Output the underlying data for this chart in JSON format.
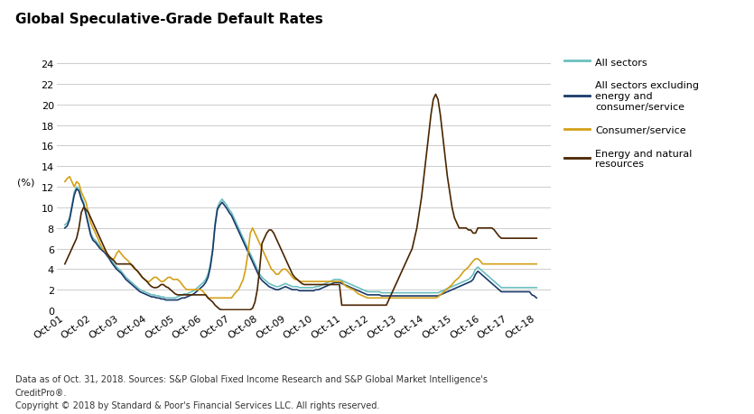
{
  "title": "Global Speculative-Grade Default Rates",
  "ylabel": "(%)",
  "footnote1": "Data as of Oct. 31, 2018. Sources: S&P Global Fixed Income Research and S&P Global Market Intelligence's",
  "footnote2": "CreditPro®.",
  "footnote3": "Copyright © 2018 by Standard & Poor's Financial Services LLC. All rights reserved.",
  "xtick_labels": [
    "Oct-01",
    "Oct-02",
    "Oct-03",
    "Oct-04",
    "Oct-05",
    "Oct-06",
    "Oct-07",
    "Oct-08",
    "Oct-09",
    "Oct-10",
    "Oct-11",
    "Oct-12",
    "Oct-13",
    "Oct-14",
    "Oct-15",
    "Oct-16",
    "Oct-17",
    "Oct-18"
  ],
  "ylim": [
    0,
    25
  ],
  "yticks": [
    0,
    2,
    4,
    6,
    8,
    10,
    12,
    14,
    16,
    18,
    20,
    22,
    24
  ],
  "legend_labels": [
    "All sectors",
    "All sectors excluding\nenergy and\nconsumer/service",
    "Consumer/service",
    "Energy and natural\nresources"
  ],
  "colors": {
    "all_sectors": "#6bbfbf",
    "all_excl": "#1a3a6b",
    "consumer": "#d4a017",
    "energy": "#4a2500"
  },
  "background_color": "#ffffff",
  "grid_color": "#cccccc",
  "n_months": 205,
  "all_sectors": [
    8.3,
    8.5,
    9.0,
    10.2,
    11.5,
    12.0,
    11.8,
    11.0,
    10.5,
    9.5,
    8.5,
    7.5,
    7.0,
    6.8,
    6.5,
    6.2,
    6.0,
    5.8,
    5.5,
    5.2,
    4.8,
    4.5,
    4.2,
    4.0,
    3.8,
    3.5,
    3.2,
    3.0,
    2.8,
    2.6,
    2.4,
    2.2,
    2.0,
    1.9,
    1.8,
    1.7,
    1.6,
    1.5,
    1.5,
    1.4,
    1.4,
    1.3,
    1.3,
    1.2,
    1.2,
    1.2,
    1.2,
    1.2,
    1.3,
    1.4,
    1.5,
    1.6,
    1.6,
    1.7,
    1.8,
    1.9,
    2.1,
    2.3,
    2.5,
    2.7,
    3.0,
    3.5,
    4.5,
    6.0,
    8.5,
    10.0,
    10.5,
    10.8,
    10.5,
    10.2,
    9.8,
    9.5,
    9.0,
    8.5,
    8.0,
    7.5,
    7.0,
    6.5,
    6.0,
    5.5,
    5.0,
    4.5,
    4.0,
    3.5,
    3.2,
    3.0,
    2.8,
    2.6,
    2.5,
    2.4,
    2.3,
    2.3,
    2.4,
    2.5,
    2.6,
    2.5,
    2.4,
    2.3,
    2.3,
    2.3,
    2.2,
    2.2,
    2.2,
    2.2,
    2.2,
    2.2,
    2.2,
    2.3,
    2.3,
    2.4,
    2.5,
    2.6,
    2.7,
    2.8,
    2.9,
    3.0,
    3.0,
    3.0,
    2.9,
    2.8,
    2.7,
    2.6,
    2.5,
    2.4,
    2.3,
    2.2,
    2.1,
    2.0,
    1.9,
    1.8,
    1.8,
    1.8,
    1.8,
    1.8,
    1.8,
    1.7,
    1.7,
    1.7,
    1.7,
    1.7,
    1.7,
    1.7,
    1.7,
    1.7,
    1.7,
    1.7,
    1.7,
    1.7,
    1.7,
    1.7,
    1.7,
    1.7,
    1.7,
    1.7,
    1.7,
    1.7,
    1.7,
    1.7,
    1.7,
    1.7,
    1.8,
    1.9,
    2.0,
    2.1,
    2.2,
    2.3,
    2.4,
    2.5,
    2.6,
    2.7,
    2.8,
    2.9,
    3.0,
    3.2,
    3.5,
    4.0,
    4.2,
    4.0,
    3.8,
    3.6,
    3.4,
    3.2,
    3.0,
    2.8,
    2.6,
    2.4,
    2.2,
    2.2,
    2.2,
    2.2,
    2.2,
    2.2,
    2.2,
    2.2,
    2.2,
    2.2,
    2.2,
    2.2,
    2.2,
    2.2,
    2.2,
    2.2
  ],
  "all_excl": [
    8.0,
    8.2,
    8.8,
    10.0,
    11.2,
    11.8,
    11.6,
    10.8,
    10.3,
    9.3,
    8.3,
    7.3,
    6.8,
    6.6,
    6.3,
    6.0,
    5.8,
    5.6,
    5.3,
    5.0,
    4.6,
    4.3,
    4.0,
    3.8,
    3.6,
    3.3,
    3.0,
    2.8,
    2.6,
    2.4,
    2.2,
    2.0,
    1.8,
    1.7,
    1.6,
    1.5,
    1.4,
    1.3,
    1.3,
    1.2,
    1.2,
    1.1,
    1.1,
    1.0,
    1.0,
    1.0,
    1.0,
    1.0,
    1.0,
    1.1,
    1.2,
    1.2,
    1.3,
    1.4,
    1.5,
    1.6,
    1.8,
    2.0,
    2.2,
    2.4,
    2.7,
    3.2,
    4.2,
    5.8,
    8.2,
    9.8,
    10.2,
    10.5,
    10.2,
    9.9,
    9.5,
    9.2,
    8.7,
    8.2,
    7.7,
    7.2,
    6.7,
    6.2,
    5.7,
    5.2,
    4.7,
    4.2,
    3.7,
    3.2,
    2.9,
    2.7,
    2.5,
    2.3,
    2.2,
    2.1,
    2.0,
    2.0,
    2.1,
    2.2,
    2.3,
    2.2,
    2.1,
    2.0,
    2.0,
    2.0,
    1.9,
    1.9,
    1.9,
    1.9,
    1.9,
    1.9,
    1.9,
    2.0,
    2.0,
    2.1,
    2.2,
    2.3,
    2.4,
    2.5,
    2.6,
    2.7,
    2.7,
    2.7,
    2.6,
    2.5,
    2.4,
    2.3,
    2.2,
    2.1,
    2.0,
    1.9,
    1.8,
    1.7,
    1.6,
    1.5,
    1.5,
    1.5,
    1.5,
    1.5,
    1.5,
    1.4,
    1.4,
    1.4,
    1.4,
    1.4,
    1.4,
    1.4,
    1.4,
    1.4,
    1.4,
    1.4,
    1.4,
    1.4,
    1.4,
    1.4,
    1.4,
    1.4,
    1.4,
    1.4,
    1.4,
    1.4,
    1.4,
    1.4,
    1.4,
    1.4,
    1.5,
    1.6,
    1.7,
    1.8,
    1.9,
    2.0,
    2.1,
    2.2,
    2.3,
    2.4,
    2.5,
    2.6,
    2.7,
    2.8,
    3.0,
    3.5,
    3.8,
    3.6,
    3.4,
    3.2,
    3.0,
    2.8,
    2.6,
    2.4,
    2.2,
    2.0,
    1.8,
    1.8,
    1.8,
    1.8,
    1.8,
    1.8,
    1.8,
    1.8,
    1.8,
    1.8,
    1.8,
    1.8,
    1.8,
    1.5,
    1.4,
    1.2
  ],
  "consumer": [
    12.5,
    12.8,
    13.0,
    12.5,
    12.0,
    12.5,
    12.3,
    11.5,
    11.0,
    10.5,
    9.5,
    8.5,
    8.0,
    7.5,
    7.0,
    6.5,
    6.0,
    5.8,
    5.5,
    5.2,
    5.0,
    5.0,
    5.5,
    5.8,
    5.5,
    5.2,
    5.0,
    4.8,
    4.5,
    4.2,
    4.0,
    3.8,
    3.5,
    3.2,
    3.0,
    2.8,
    2.8,
    3.0,
    3.2,
    3.2,
    3.0,
    2.8,
    2.8,
    3.0,
    3.2,
    3.2,
    3.0,
    3.0,
    3.0,
    2.8,
    2.5,
    2.2,
    2.0,
    2.0,
    2.0,
    2.0,
    2.0,
    2.0,
    2.0,
    1.8,
    1.5,
    1.2,
    1.2,
    1.2,
    1.2,
    1.2,
    1.2,
    1.2,
    1.2,
    1.2,
    1.2,
    1.2,
    1.5,
    1.8,
    2.0,
    2.5,
    3.0,
    4.0,
    5.5,
    7.5,
    8.0,
    7.5,
    7.0,
    6.5,
    6.0,
    5.5,
    5.0,
    4.5,
    4.0,
    3.8,
    3.5,
    3.5,
    3.8,
    4.0,
    4.0,
    3.8,
    3.5,
    3.2,
    3.0,
    3.0,
    2.8,
    2.8,
    2.8,
    2.8,
    2.8,
    2.8,
    2.8,
    2.8,
    2.8,
    2.8,
    2.8,
    2.8,
    2.8,
    2.8,
    2.8,
    2.8,
    2.8,
    2.8,
    2.8,
    2.5,
    2.3,
    2.2,
    2.1,
    2.0,
    1.8,
    1.6,
    1.5,
    1.4,
    1.3,
    1.2,
    1.2,
    1.2,
    1.2,
    1.2,
    1.2,
    1.2,
    1.2,
    1.2,
    1.2,
    1.2,
    1.2,
    1.2,
    1.2,
    1.2,
    1.2,
    1.2,
    1.2,
    1.2,
    1.2,
    1.2,
    1.2,
    1.2,
    1.2,
    1.2,
    1.2,
    1.2,
    1.2,
    1.2,
    1.2,
    1.3,
    1.5,
    1.7,
    1.9,
    2.1,
    2.3,
    2.5,
    2.8,
    3.0,
    3.2,
    3.5,
    3.8,
    4.0,
    4.2,
    4.5,
    4.8,
    5.0,
    5.0,
    4.8,
    4.5,
    4.5,
    4.5,
    4.5,
    4.5,
    4.5,
    4.5,
    4.5,
    4.5,
    4.5,
    4.5,
    4.5,
    4.5,
    4.5,
    4.5,
    4.5,
    4.5,
    4.5,
    4.5,
    4.5,
    4.5,
    4.5,
    4.5,
    4.5
  ],
  "energy": [
    4.5,
    5.0,
    5.5,
    6.0,
    6.5,
    7.0,
    8.0,
    9.5,
    10.0,
    9.8,
    9.5,
    9.0,
    8.5,
    8.0,
    7.5,
    7.0,
    6.5,
    6.0,
    5.5,
    5.2,
    5.0,
    4.8,
    4.5,
    4.5,
    4.5,
    4.5,
    4.5,
    4.5,
    4.5,
    4.3,
    4.0,
    3.8,
    3.5,
    3.2,
    3.0,
    2.8,
    2.5,
    2.3,
    2.2,
    2.2,
    2.3,
    2.5,
    2.5,
    2.3,
    2.2,
    2.0,
    1.8,
    1.6,
    1.5,
    1.5,
    1.5,
    1.5,
    1.5,
    1.5,
    1.5,
    1.5,
    1.5,
    1.5,
    1.5,
    1.5,
    1.5,
    1.2,
    1.0,
    0.8,
    0.5,
    0.3,
    0.1,
    0.05,
    0.05,
    0.05,
    0.05,
    0.05,
    0.05,
    0.05,
    0.05,
    0.05,
    0.05,
    0.05,
    0.05,
    0.05,
    0.2,
    0.8,
    2.0,
    4.0,
    6.5,
    7.0,
    7.5,
    7.8,
    7.8,
    7.5,
    7.0,
    6.5,
    6.0,
    5.5,
    5.0,
    4.5,
    4.0,
    3.5,
    3.2,
    3.0,
    2.8,
    2.6,
    2.5,
    2.5,
    2.5,
    2.5,
    2.5,
    2.5,
    2.5,
    2.5,
    2.5,
    2.5,
    2.5,
    2.5,
    2.5,
    2.5,
    2.5,
    2.5,
    0.5,
    0.5,
    0.5,
    0.5,
    0.5,
    0.5,
    0.5,
    0.5,
    0.5,
    0.5,
    0.5,
    0.5,
    0.5,
    0.5,
    0.5,
    0.5,
    0.5,
    0.5,
    0.5,
    0.5,
    1.0,
    1.5,
    2.0,
    2.5,
    3.0,
    3.5,
    4.0,
    4.5,
    5.0,
    5.5,
    6.0,
    7.0,
    8.0,
    9.5,
    11.0,
    13.0,
    15.0,
    17.0,
    19.0,
    20.5,
    21.0,
    20.5,
    19.0,
    17.0,
    15.0,
    13.0,
    11.5,
    10.0,
    9.0,
    8.5,
    8.0,
    8.0,
    8.0,
    8.0,
    7.8,
    7.8,
    7.5,
    7.5,
    8.0,
    8.0,
    8.0,
    8.0,
    8.0,
    8.0,
    8.0,
    7.8,
    7.5,
    7.2,
    7.0,
    7.0,
    7.0,
    7.0,
    7.0,
    7.0,
    7.0,
    7.0,
    7.0,
    7.0,
    7.0,
    7.0,
    7.0,
    7.0,
    7.0,
    7.0
  ]
}
